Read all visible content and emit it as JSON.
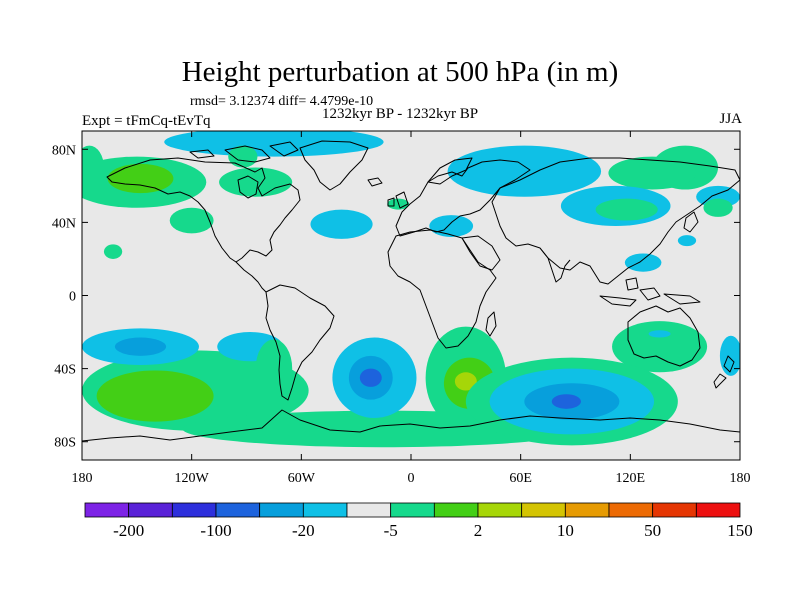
{
  "title": "Height perturbation at 500 hPa (in m)",
  "stats": "rmsd= 3.12374  diff= 4.4799e-10",
  "period": "1232kyr BP - 1232kyr BP",
  "left_label": "Expt = tFmCq-tEvTq",
  "right_label": "JJA",
  "map": {
    "projection": "cylindrical-equidistant",
    "lon_range": [
      -180,
      180
    ],
    "lat_range": [
      -90,
      90
    ],
    "lat_ticks": [
      {
        "value": 80,
        "label": "80N"
      },
      {
        "value": 40,
        "label": "40N"
      },
      {
        "value": 0,
        "label": "0"
      },
      {
        "value": -40,
        "label": "40S"
      },
      {
        "value": -80,
        "label": "80S"
      }
    ],
    "lon_ticks": [
      {
        "value": -180,
        "label": "180"
      },
      {
        "value": -120,
        "label": "120W"
      },
      {
        "value": -60,
        "label": "60W"
      },
      {
        "value": 0,
        "label": "0"
      },
      {
        "value": 60,
        "label": "60E"
      },
      {
        "value": 120,
        "label": "120E"
      },
      {
        "value": 180,
        "label": "180"
      }
    ],
    "background_color": "#e8e8e8",
    "fields": [
      {
        "level": 1,
        "color": "#16d98c",
        "lon": 150,
        "lat": 70,
        "rx": 18,
        "ry": 12
      },
      {
        "level": 1,
        "color": "#16d98c",
        "lon": -176,
        "lat": 70,
        "rx": 8,
        "ry": 12
      },
      {
        "level": 1,
        "color": "#16d98c",
        "lon": -150,
        "lat": 62,
        "rx": 38,
        "ry": 14
      },
      {
        "level": 2,
        "color": "#43cf16",
        "lon": -148,
        "lat": 64,
        "rx": 18,
        "ry": 8
      },
      {
        "level": 1,
        "color": "#16d98c",
        "lon": -85,
        "lat": 62,
        "rx": 20,
        "ry": 8
      },
      {
        "level": 0,
        "color": "#0fc0e6",
        "lon": -75,
        "lat": 84,
        "rx": 60,
        "ry": 8
      },
      {
        "level": 1,
        "color": "#16d98c",
        "lon": -92,
        "lat": 76,
        "rx": 8,
        "ry": 6
      },
      {
        "level": 1,
        "color": "#16d98c",
        "lon": -120,
        "lat": 41,
        "rx": 12,
        "ry": 7
      },
      {
        "level": 1,
        "color": "#16d98c",
        "lon": -163,
        "lat": 24,
        "rx": 5,
        "ry": 4
      },
      {
        "level": 0,
        "color": "#0fc0e6",
        "lon": -38,
        "lat": 39,
        "rx": 17,
        "ry": 8
      },
      {
        "level": 0,
        "color": "#0fc0e6",
        "lon": 22,
        "lat": 38,
        "rx": 12,
        "ry": 6
      },
      {
        "level": 1,
        "color": "#16d98c",
        "lon": -7,
        "lat": 50,
        "rx": 6,
        "ry": 3
      },
      {
        "level": 0,
        "color": "#0fc0e6",
        "lon": 62,
        "lat": 68,
        "rx": 42,
        "ry": 14
      },
      {
        "level": 1,
        "color": "#16d98c",
        "lon": 132,
        "lat": 67,
        "rx": 24,
        "ry": 9
      },
      {
        "level": 0,
        "color": "#0fc0e6",
        "lon": 112,
        "lat": 49,
        "rx": 30,
        "ry": 11
      },
      {
        "level": 1,
        "color": "#16d98c",
        "lon": 118,
        "lat": 47,
        "rx": 17,
        "ry": 6
      },
      {
        "level": 0,
        "color": "#0fc0e6",
        "lon": 127,
        "lat": 18,
        "rx": 10,
        "ry": 5
      },
      {
        "level": 0,
        "color": "#0fc0e6",
        "lon": 168,
        "lat": 54,
        "rx": 12,
        "ry": 6
      },
      {
        "level": 1,
        "color": "#16d98c",
        "lon": 168,
        "lat": 48,
        "rx": 8,
        "ry": 5
      },
      {
        "level": 0,
        "color": "#0fc0e6",
        "lon": 151,
        "lat": 30,
        "rx": 5,
        "ry": 3
      },
      {
        "level": 1,
        "color": "#16d98c",
        "lon": 136,
        "lat": -28,
        "rx": 26,
        "ry": 14
      },
      {
        "level": 0,
        "color": "#0fc0e6",
        "lon": 136,
        "lat": -21,
        "rx": 6,
        "ry": 2
      },
      {
        "level": 0,
        "color": "#0fc0e6",
        "lon": 175,
        "lat": -33,
        "rx": 6,
        "ry": 11
      },
      {
        "level": 1,
        "color": "#16d98c",
        "lon": -118,
        "lat": -52,
        "rx": 62,
        "ry": 22
      },
      {
        "level": 0,
        "color": "#0fc0e6",
        "lon": -148,
        "lat": -28,
        "rx": 32,
        "ry": 10
      },
      {
        "level": 0,
        "color": "#0fc0e6",
        "lon": -88,
        "lat": -28,
        "rx": 18,
        "ry": 8
      },
      {
        "level": 2,
        "color": "#43cf16",
        "lon": -140,
        "lat": -55,
        "rx": 32,
        "ry": 14
      },
      {
        "level": 1,
        "color": "#16d98c",
        "lon": -75,
        "lat": -40,
        "rx": 10,
        "ry": 16
      },
      {
        "level": 1,
        "color": "#16d98c",
        "lon": -15,
        "lat": -73,
        "rx": 110,
        "ry": 10
      },
      {
        "level": 0,
        "color": "#0fc0e6",
        "lon": -20,
        "lat": -45,
        "rx": 23,
        "ry": 22
      },
      {
        "level": 1,
        "color": "#16d98c",
        "lon": 30,
        "lat": -45,
        "rx": 22,
        "ry": 28
      },
      {
        "level": 2,
        "color": "#43cf16",
        "lon": 32,
        "lat": -48,
        "rx": 14,
        "ry": 14
      },
      {
        "level": 3,
        "color": "#a6d608",
        "lon": 30,
        "lat": -47,
        "rx": 6,
        "ry": 5
      },
      {
        "level": 1,
        "color": "#16d98c",
        "lon": 88,
        "lat": -58,
        "rx": 58,
        "ry": 24
      },
      {
        "level": 0,
        "color": "#0fc0e6",
        "lon": 88,
        "lat": -58,
        "rx": 45,
        "ry": 18
      },
      {
        "level": -1,
        "color": "#079fdc",
        "lon": -22,
        "lat": -45,
        "rx": 12,
        "ry": 12
      },
      {
        "level": -2,
        "color": "#1d63dd",
        "lon": -22,
        "lat": -45,
        "rx": 6,
        "ry": 5
      },
      {
        "level": -1,
        "color": "#079fdc",
        "lon": -148,
        "lat": -28,
        "rx": 14,
        "ry": 5
      },
      {
        "level": -1,
        "color": "#079fdc",
        "lon": 88,
        "lat": -58,
        "rx": 26,
        "ry": 10
      },
      {
        "level": -2,
        "color": "#1d63dd",
        "lon": 85,
        "lat": -58,
        "rx": 8,
        "ry": 4
      }
    ]
  },
  "colorbar": {
    "colors": [
      "#7d23e6",
      "#5a22d8",
      "#2d2fdc",
      "#1d63dd",
      "#079fdc",
      "#0fc0e6",
      "#e8e8e8",
      "#16d98c",
      "#43cf16",
      "#a6d608",
      "#d4c403",
      "#e69b03",
      "#ec6a04",
      "#e53603",
      "#ed1010"
    ],
    "labels": [
      "-200",
      "-100",
      "-20",
      "-5",
      "2",
      "10",
      "50",
      "150"
    ]
  }
}
